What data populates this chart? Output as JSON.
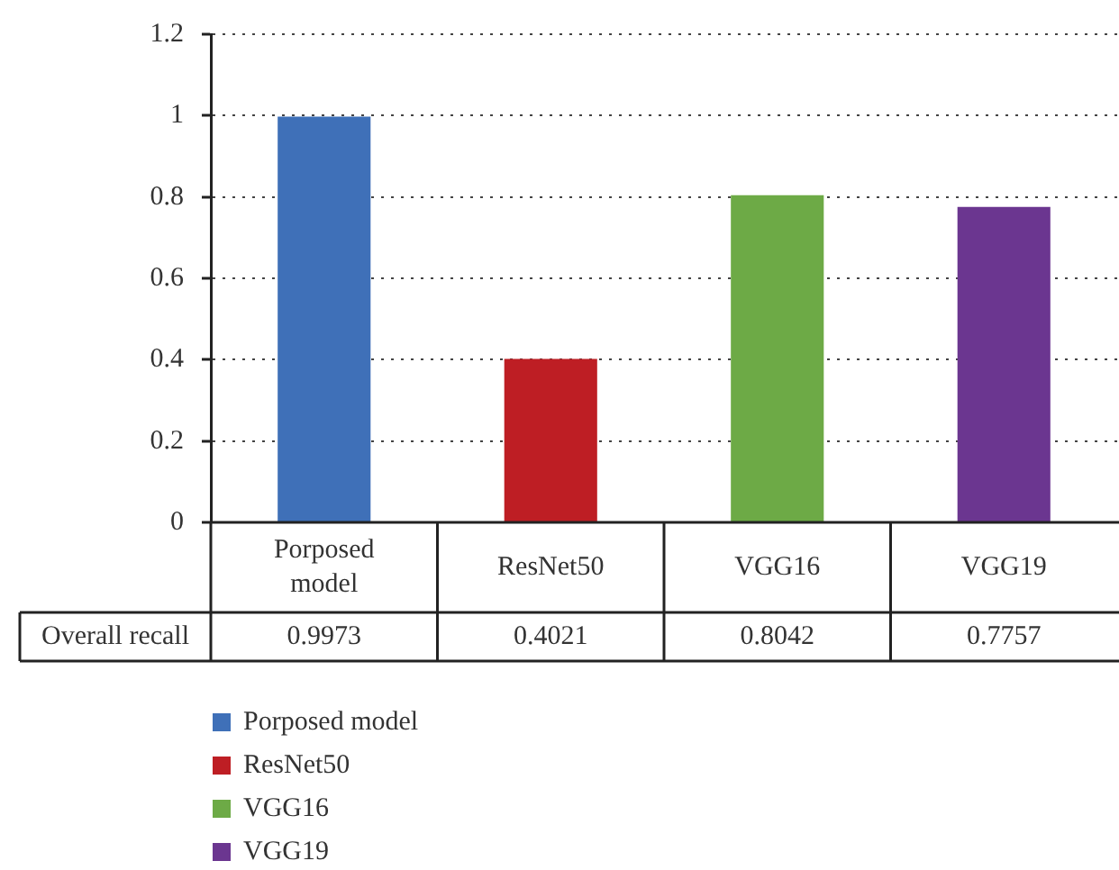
{
  "chart_data": {
    "type": "bar",
    "categories": [
      "Porposed model",
      "ResNet50",
      "VGG16",
      "VGG19"
    ],
    "series": [
      {
        "name": "Overall recall",
        "colors": [
          "#3f70b8",
          "#be1e24",
          "#6daa46",
          "#6b3690"
        ],
        "values": [
          0.9973,
          0.4021,
          0.8042,
          0.7757
        ]
      }
    ],
    "ylim": [
      0,
      1.2
    ],
    "yticks": [
      0,
      0.2,
      0.4,
      0.6,
      0.8,
      1,
      1.2
    ],
    "grid": "y",
    "legend": "bottom",
    "data_labels": true
  }
}
